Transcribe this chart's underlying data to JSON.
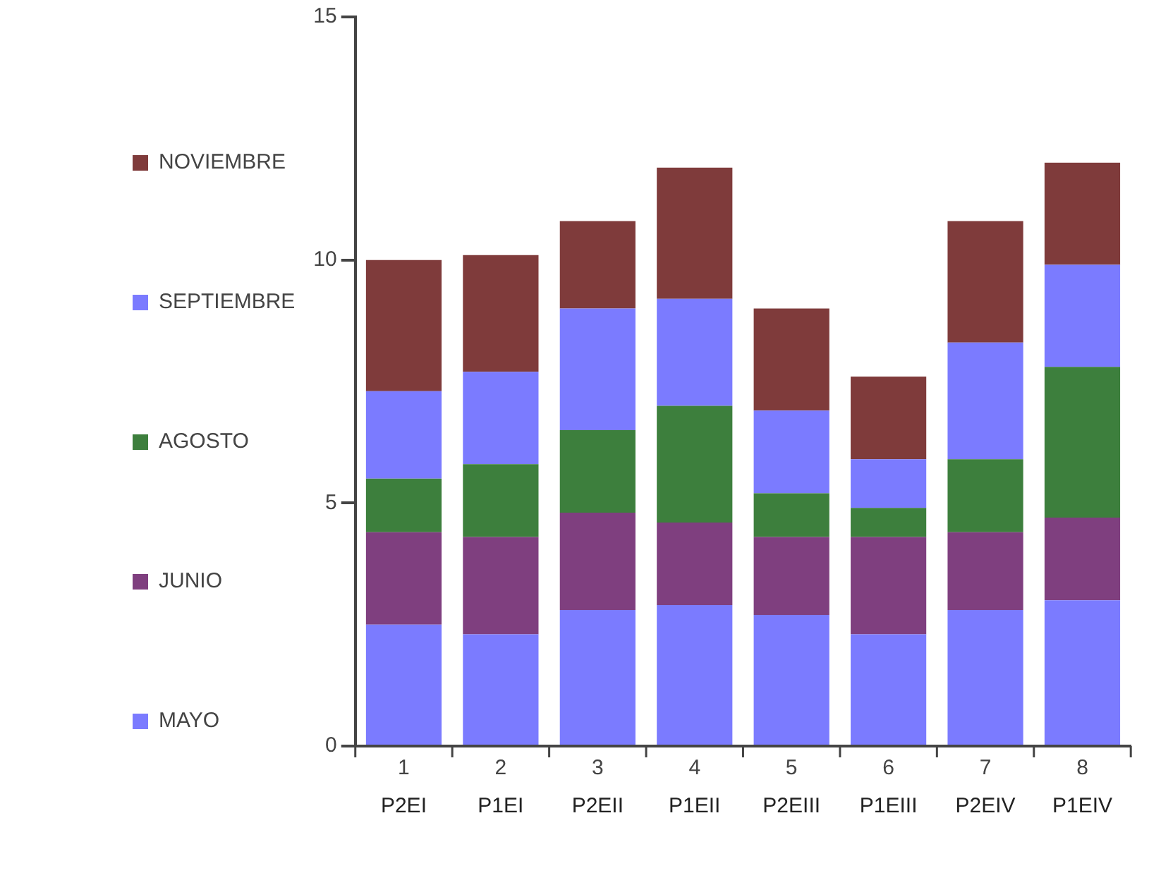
{
  "chart_data": {
    "type": "bar",
    "stacked": true,
    "categories": [
      "P2EI",
      "P1EI",
      "P2EII",
      "P1EII",
      "P2EIII",
      "P1EIII",
      "P2EIV",
      "P1EIV"
    ],
    "series": [
      {
        "name": "MAYO",
        "color": "#7b7bff",
        "values": [
          2.5,
          2.3,
          2.8,
          2.9,
          2.7,
          2.3,
          2.8,
          3.0
        ]
      },
      {
        "name": "JUNIO",
        "color": "#7f3f7f",
        "values": [
          1.9,
          2.0,
          2.0,
          1.7,
          1.6,
          2.0,
          1.6,
          1.7
        ]
      },
      {
        "name": "AGOSTO",
        "color": "#3d7f3d",
        "values": [
          1.1,
          1.5,
          1.7,
          2.4,
          0.9,
          0.6,
          1.5,
          3.1
        ]
      },
      {
        "name": "SEPTIEMBRE",
        "color": "#7b7bff",
        "values": [
          1.8,
          1.9,
          2.5,
          2.2,
          1.7,
          1.0,
          2.4,
          2.1
        ]
      },
      {
        "name": "NOVIEMBRE",
        "color": "#7f3b3b",
        "values": [
          2.7,
          2.4,
          1.8,
          2.7,
          2.1,
          1.7,
          2.5,
          2.1
        ]
      }
    ],
    "ylim": [
      0,
      15
    ],
    "yticks": [
      0,
      5,
      10,
      15
    ],
    "grid": false,
    "legend": "left",
    "annotations": [
      "1",
      "2",
      "3",
      "4",
      "5",
      "6",
      "7",
      "8"
    ]
  }
}
